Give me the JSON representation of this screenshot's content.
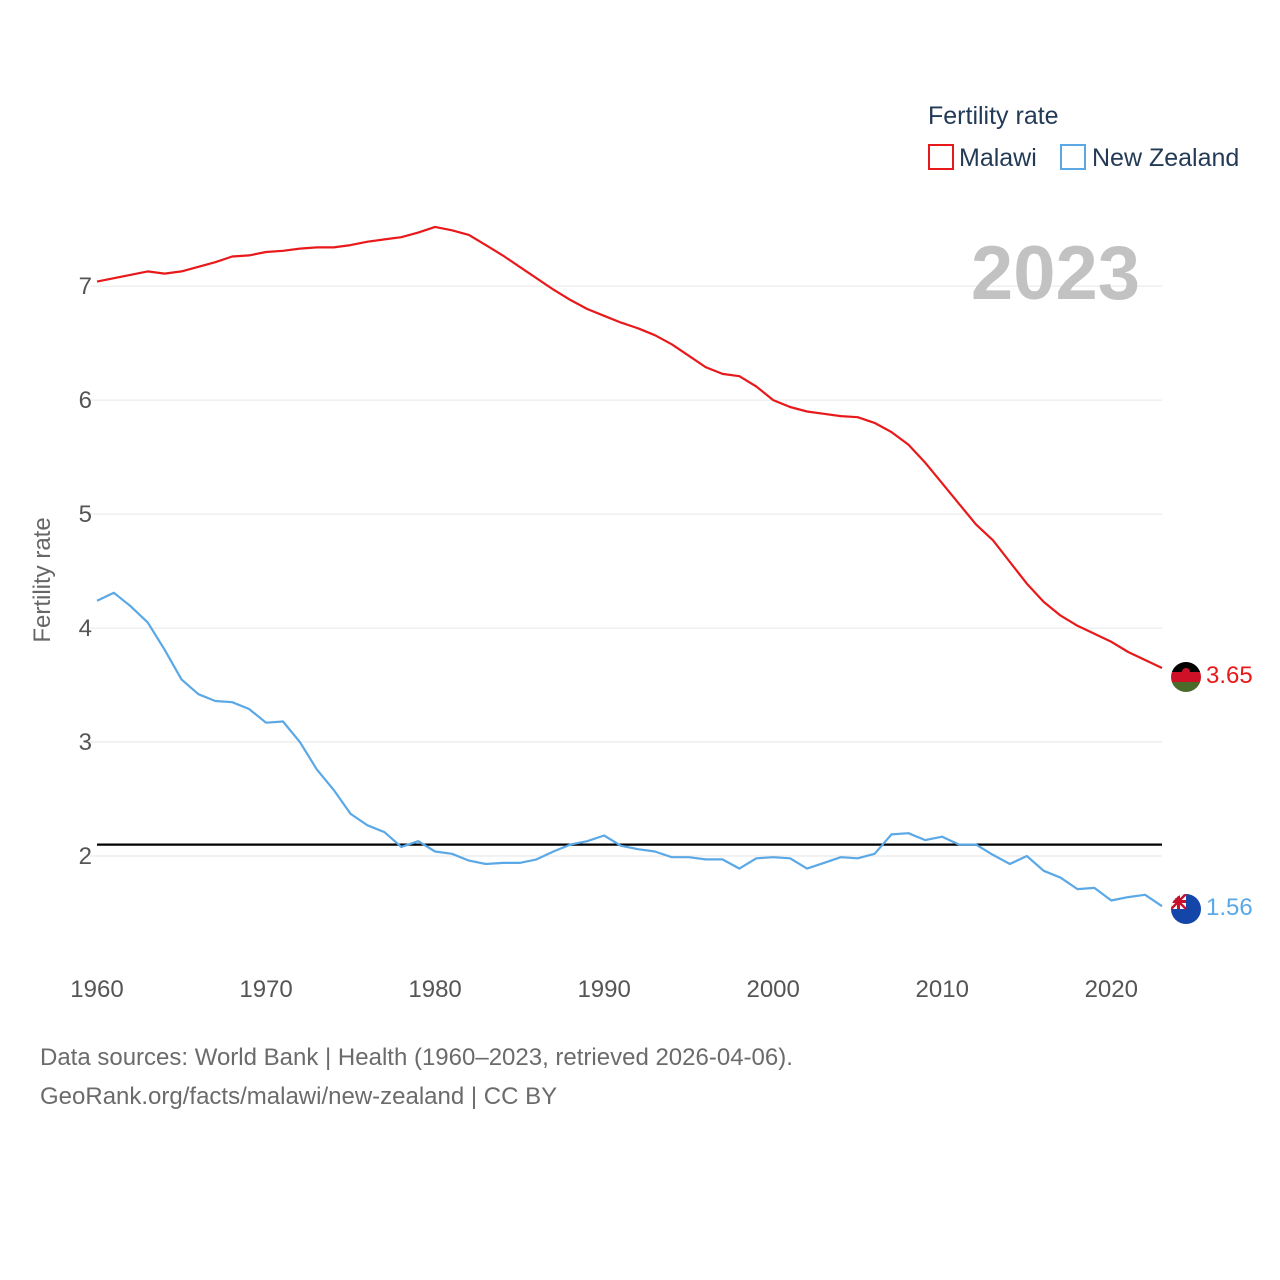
{
  "chart_data": {
    "type": "line",
    "year_label": "2023",
    "ylabel": "Fertility rate",
    "ylim": [
      1.0,
      7.8
    ],
    "xlim": [
      1960,
      2023
    ],
    "yticks": [
      2,
      3,
      4,
      5,
      6,
      7
    ],
    "xticks": [
      1960,
      1970,
      1980,
      1990,
      2000,
      2010,
      2020
    ],
    "reference_line": 2.1,
    "legend": {
      "title": "Fertility rate",
      "items": [
        "Malawi",
        "New Zealand"
      ]
    },
    "series": [
      {
        "name": "Malawi",
        "color": "#e8191b",
        "end_value_label": "3.65",
        "x": [
          1960,
          1961,
          1962,
          1963,
          1964,
          1965,
          1966,
          1967,
          1968,
          1969,
          1970,
          1971,
          1972,
          1973,
          1974,
          1975,
          1976,
          1977,
          1978,
          1979,
          1980,
          1981,
          1982,
          1983,
          1984,
          1985,
          1986,
          1987,
          1988,
          1989,
          1990,
          1991,
          1992,
          1993,
          1994,
          1995,
          1996,
          1997,
          1998,
          1999,
          2000,
          2001,
          2002,
          2003,
          2004,
          2005,
          2006,
          2007,
          2008,
          2009,
          2010,
          2011,
          2012,
          2013,
          2014,
          2015,
          2016,
          2017,
          2018,
          2019,
          2020,
          2021,
          2022,
          2023
        ],
        "values": [
          7.04,
          7.07,
          7.1,
          7.13,
          7.11,
          7.13,
          7.17,
          7.21,
          7.26,
          7.27,
          7.3,
          7.31,
          7.33,
          7.34,
          7.34,
          7.36,
          7.39,
          7.41,
          7.43,
          7.47,
          7.52,
          7.49,
          7.45,
          7.36,
          7.27,
          7.17,
          7.07,
          6.97,
          6.88,
          6.8,
          6.74,
          6.68,
          6.63,
          6.57,
          6.49,
          6.39,
          6.29,
          6.23,
          6.21,
          6.12,
          6.0,
          5.94,
          5.9,
          5.88,
          5.86,
          5.85,
          5.8,
          5.72,
          5.61,
          5.45,
          5.27,
          5.09,
          4.91,
          4.77,
          4.58,
          4.39,
          4.23,
          4.11,
          4.02,
          3.95,
          3.88,
          3.79,
          3.72,
          3.65
        ]
      },
      {
        "name": "New Zealand",
        "color": "#5aa8e6",
        "end_value_label": "1.56",
        "x": [
          1960,
          1961,
          1962,
          1963,
          1964,
          1965,
          1966,
          1967,
          1968,
          1969,
          1970,
          1971,
          1972,
          1973,
          1974,
          1975,
          1976,
          1977,
          1978,
          1979,
          1980,
          1981,
          1982,
          1983,
          1984,
          1985,
          1986,
          1987,
          1988,
          1989,
          1990,
          1991,
          1992,
          1993,
          1994,
          1995,
          1996,
          1997,
          1998,
          1999,
          2000,
          2001,
          2002,
          2003,
          2004,
          2005,
          2006,
          2007,
          2008,
          2009,
          2010,
          2011,
          2012,
          2013,
          2014,
          2015,
          2016,
          2017,
          2018,
          2019,
          2020,
          2021,
          2022,
          2023
        ],
        "values": [
          4.24,
          4.31,
          4.19,
          4.05,
          3.81,
          3.55,
          3.42,
          3.36,
          3.35,
          3.29,
          3.17,
          3.18,
          3.0,
          2.76,
          2.58,
          2.37,
          2.27,
          2.21,
          2.08,
          2.13,
          2.04,
          2.02,
          1.96,
          1.93,
          1.94,
          1.94,
          1.97,
          2.04,
          2.1,
          2.13,
          2.18,
          2.09,
          2.06,
          2.04,
          1.99,
          1.99,
          1.97,
          1.97,
          1.89,
          1.98,
          1.99,
          1.98,
          1.89,
          1.94,
          1.99,
          1.98,
          2.02,
          2.19,
          2.2,
          2.14,
          2.17,
          2.1,
          2.1,
          2.01,
          1.93,
          2.0,
          1.87,
          1.81,
          1.71,
          1.72,
          1.61,
          1.64,
          1.66,
          1.56
        ]
      }
    ]
  },
  "footer": {
    "line1": "Data sources: World Bank | Health (1960–2023, retrieved 2026-04-06).",
    "line2": "GeoRank.org/facts/malawi/new-zealand | CC BY"
  }
}
